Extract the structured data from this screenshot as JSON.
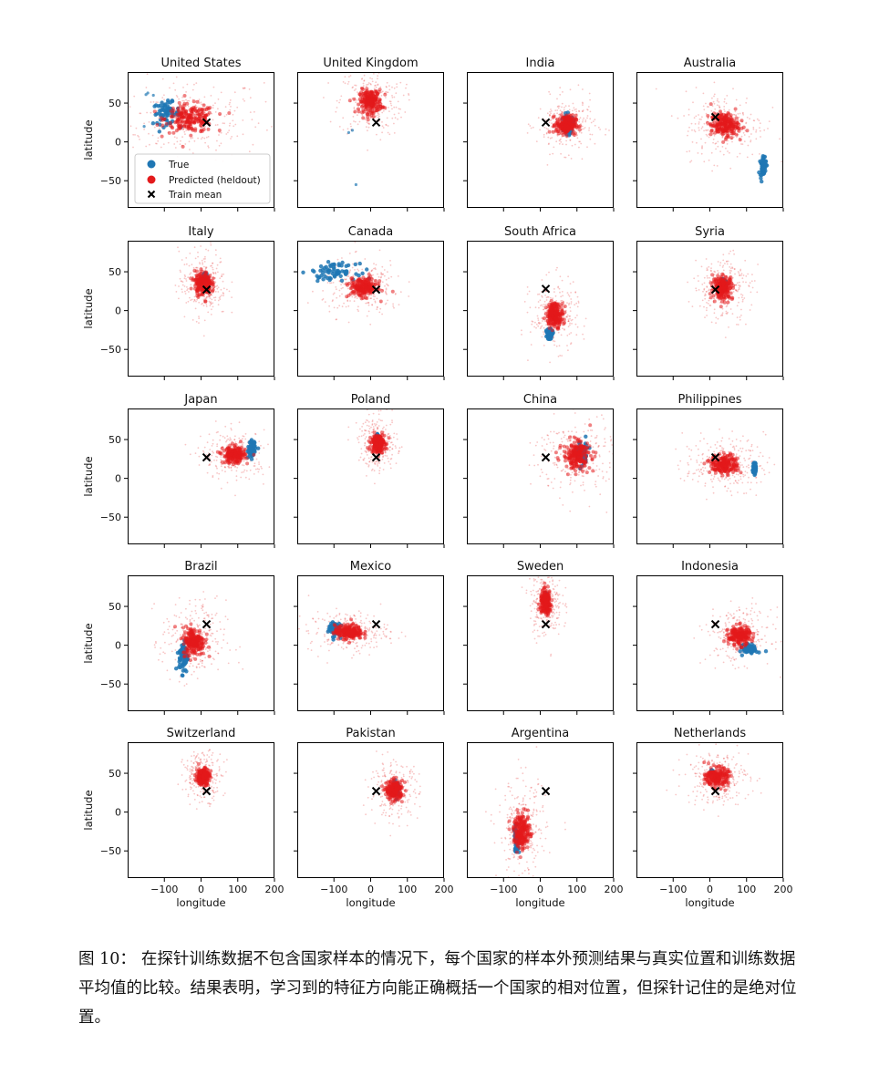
{
  "figure": {
    "xlabel": "longitude",
    "ylabel": "latitude",
    "xticks": [
      -100,
      0,
      100,
      200
    ],
    "yticks": [
      50,
      0,
      -50
    ],
    "legend": {
      "placement": "lower-left of first panel",
      "items": [
        "True",
        "Predicted (heldout)",
        "Train mean"
      ]
    },
    "colors": {
      "true": "#1f77b4",
      "predicted": "#e31a1c",
      "train_mean": "#000000"
    }
  },
  "chart_data": [
    {
      "type": "scatter",
      "title": "United States",
      "xlim": [
        -200,
        200
      ],
      "ylim": [
        -85,
        90
      ],
      "train_mean": [
        15,
        25
      ],
      "true": {
        "cx": -95,
        "cy": 37,
        "sx": 18,
        "sy": 7,
        "pts": [
          [
            -155,
            20
          ],
          [
            -150,
            61
          ],
          [
            -145,
            63
          ],
          [
            -130,
            60
          ]
        ]
      },
      "predicted": {
        "cx": -30,
        "cy": 30,
        "sx": 45,
        "sy": 12
      }
    },
    {
      "type": "scatter",
      "title": "United Kingdom",
      "xlim": [
        -200,
        200
      ],
      "ylim": [
        -85,
        90
      ],
      "train_mean": [
        15,
        25
      ],
      "true": {
        "cx": -2,
        "cy": 53,
        "sx": 3,
        "sy": 2,
        "pts": [
          [
            -60,
            12
          ],
          [
            -50,
            15
          ],
          [
            -40,
            -55
          ]
        ]
      },
      "predicted": {
        "cx": 0,
        "cy": 52,
        "sx": 20,
        "sy": 10
      }
    },
    {
      "type": "scatter",
      "title": "India",
      "xlim": [
        -200,
        200
      ],
      "ylim": [
        -85,
        90
      ],
      "train_mean": [
        15,
        25
      ],
      "true": {
        "cx": 78,
        "cy": 22,
        "sx": 6,
        "sy": 6
      },
      "predicted": {
        "cx": 70,
        "cy": 22,
        "sx": 18,
        "sy": 8
      }
    },
    {
      "type": "scatter",
      "title": "Australia",
      "xlim": [
        -200,
        200
      ],
      "ylim": [
        -85,
        90
      ],
      "train_mean": [
        15,
        32
      ],
      "true": {
        "cx": 145,
        "cy": -30,
        "sx": 4,
        "sy": 7
      },
      "predicted": {
        "cx": 40,
        "cy": 22,
        "sx": 25,
        "sy": 10
      }
    },
    {
      "type": "scatter",
      "title": "Italy",
      "xlim": [
        -200,
        200
      ],
      "ylim": [
        -85,
        90
      ],
      "train_mean": [
        15,
        27
      ],
      "true": {
        "cx": 12,
        "cy": 42,
        "sx": 3,
        "sy": 3
      },
      "predicted": {
        "cx": 5,
        "cy": 35,
        "sx": 15,
        "sy": 10
      }
    },
    {
      "type": "scatter",
      "title": "Canada",
      "xlim": [
        -200,
        200
      ],
      "ylim": [
        -85,
        90
      ],
      "train_mean": [
        15,
        27
      ],
      "true": {
        "cx": -100,
        "cy": 50,
        "sx": 30,
        "sy": 5
      },
      "predicted": {
        "cx": -20,
        "cy": 30,
        "sx": 25,
        "sy": 8
      }
    },
    {
      "type": "scatter",
      "title": "South Africa",
      "xlim": [
        -200,
        200
      ],
      "ylim": [
        -85,
        90
      ],
      "train_mean": [
        15,
        28
      ],
      "true": {
        "cx": 25,
        "cy": -30,
        "sx": 4,
        "sy": 3
      },
      "predicted": {
        "cx": 40,
        "cy": -5,
        "sx": 15,
        "sy": 10
      }
    },
    {
      "type": "scatter",
      "title": "Syria",
      "xlim": [
        -200,
        200
      ],
      "ylim": [
        -85,
        90
      ],
      "train_mean": [
        15,
        27
      ],
      "true": {
        "cx": 38,
        "cy": 35,
        "sx": 3,
        "sy": 2
      },
      "predicted": {
        "cx": 35,
        "cy": 30,
        "sx": 18,
        "sy": 10
      }
    },
    {
      "type": "scatter",
      "title": "Japan",
      "xlim": [
        -200,
        200
      ],
      "ylim": [
        -85,
        90
      ],
      "train_mean": [
        15,
        27
      ],
      "true": {
        "cx": 138,
        "cy": 37,
        "sx": 5,
        "sy": 5
      },
      "predicted": {
        "cx": 90,
        "cy": 30,
        "sx": 20,
        "sy": 7
      }
    },
    {
      "type": "scatter",
      "title": "Poland",
      "xlim": [
        -200,
        200
      ],
      "ylim": [
        -85,
        90
      ],
      "train_mean": [
        15,
        27
      ],
      "true": {
        "cx": 19,
        "cy": 52,
        "sx": 2,
        "sy": 2
      },
      "predicted": {
        "cx": 20,
        "cy": 45,
        "sx": 12,
        "sy": 8
      }
    },
    {
      "type": "scatter",
      "title": "China",
      "xlim": [
        -200,
        200
      ],
      "ylim": [
        -85,
        90
      ],
      "train_mean": [
        15,
        27
      ],
      "true": {
        "cx": 112,
        "cy": 32,
        "sx": 8,
        "sy": 8
      },
      "predicted": {
        "cx": 100,
        "cy": 30,
        "sx": 25,
        "sy": 12
      }
    },
    {
      "type": "scatter",
      "title": "Philippines",
      "xlim": [
        -200,
        200
      ],
      "ylim": [
        -85,
        90
      ],
      "train_mean": [
        15,
        27
      ],
      "true": {
        "cx": 122,
        "cy": 13,
        "sx": 2,
        "sy": 4
      },
      "predicted": {
        "cx": 40,
        "cy": 18,
        "sx": 25,
        "sy": 8
      }
    },
    {
      "type": "scatter",
      "title": "Brazil",
      "xlim": [
        -200,
        200
      ],
      "ylim": [
        -85,
        90
      ],
      "train_mean": [
        15,
        27
      ],
      "true": {
        "cx": -48,
        "cy": -15,
        "sx": 6,
        "sy": 10
      },
      "predicted": {
        "cx": -20,
        "cy": 5,
        "sx": 20,
        "sy": 12
      }
    },
    {
      "type": "scatter",
      "title": "Mexico",
      "xlim": [
        -200,
        200
      ],
      "ylim": [
        -85,
        90
      ],
      "train_mean": [
        15,
        27
      ],
      "true": {
        "cx": -100,
        "cy": 22,
        "sx": 8,
        "sy": 5
      },
      "predicted": {
        "cx": -60,
        "cy": 17,
        "sx": 25,
        "sy": 6
      }
    },
    {
      "type": "scatter",
      "title": "Sweden",
      "xlim": [
        -200,
        200
      ],
      "ylim": [
        -85,
        90
      ],
      "train_mean": [
        15,
        27
      ],
      "true": {
        "cx": 16,
        "cy": 60,
        "sx": 2,
        "sy": 4
      },
      "predicted": {
        "cx": 15,
        "cy": 55,
        "sx": 10,
        "sy": 10
      }
    },
    {
      "type": "scatter",
      "title": "Indonesia",
      "xlim": [
        -200,
        200
      ],
      "ylim": [
        -85,
        90
      ],
      "train_mean": [
        15,
        27
      ],
      "true": {
        "cx": 110,
        "cy": -5,
        "sx": 10,
        "sy": 3
      },
      "predicted": {
        "cx": 80,
        "cy": 12,
        "sx": 20,
        "sy": 8
      }
    },
    {
      "type": "scatter",
      "title": "Switzerland",
      "xlim": [
        -200,
        200
      ],
      "ylim": [
        -85,
        90
      ],
      "train_mean": [
        15,
        27
      ],
      "true": {
        "cx": 8,
        "cy": 47,
        "sx": 1,
        "sy": 1
      },
      "predicted": {
        "cx": 5,
        "cy": 46,
        "sx": 12,
        "sy": 7
      }
    },
    {
      "type": "scatter",
      "title": "Pakistan",
      "xlim": [
        -200,
        200
      ],
      "ylim": [
        -85,
        90
      ],
      "train_mean": [
        15,
        27
      ],
      "true": {
        "cx": 70,
        "cy": 30,
        "sx": 3,
        "sy": 4
      },
      "predicted": {
        "cx": 65,
        "cy": 28,
        "sx": 15,
        "sy": 8
      }
    },
    {
      "type": "scatter",
      "title": "Argentina",
      "xlim": [
        -200,
        200
      ],
      "ylim": [
        -85,
        90
      ],
      "train_mean": [
        15,
        27
      ],
      "true": {
        "cx": -65,
        "cy": -35,
        "sx": 3,
        "sy": 8
      },
      "predicted": {
        "cx": -50,
        "cy": -25,
        "sx": 15,
        "sy": 15
      }
    },
    {
      "type": "scatter",
      "title": "Netherlands",
      "xlim": [
        -200,
        200
      ],
      "ylim": [
        -85,
        90
      ],
      "train_mean": [
        15,
        27
      ],
      "true": {
        "cx": 5,
        "cy": 52,
        "sx": 1,
        "sy": 1
      },
      "predicted": {
        "cx": 20,
        "cy": 45,
        "sx": 20,
        "sy": 8
      }
    }
  ],
  "caption": {
    "label": "图 10：",
    "text": "在探针训练数据不包含国家样本的情况下，每个国家的样本外预测结果与真实位置和训练数据平均值的比较。结果表明，学习到的特征方向能正确概括一个国家的相对位置，但探针记住的是绝对位置。"
  }
}
